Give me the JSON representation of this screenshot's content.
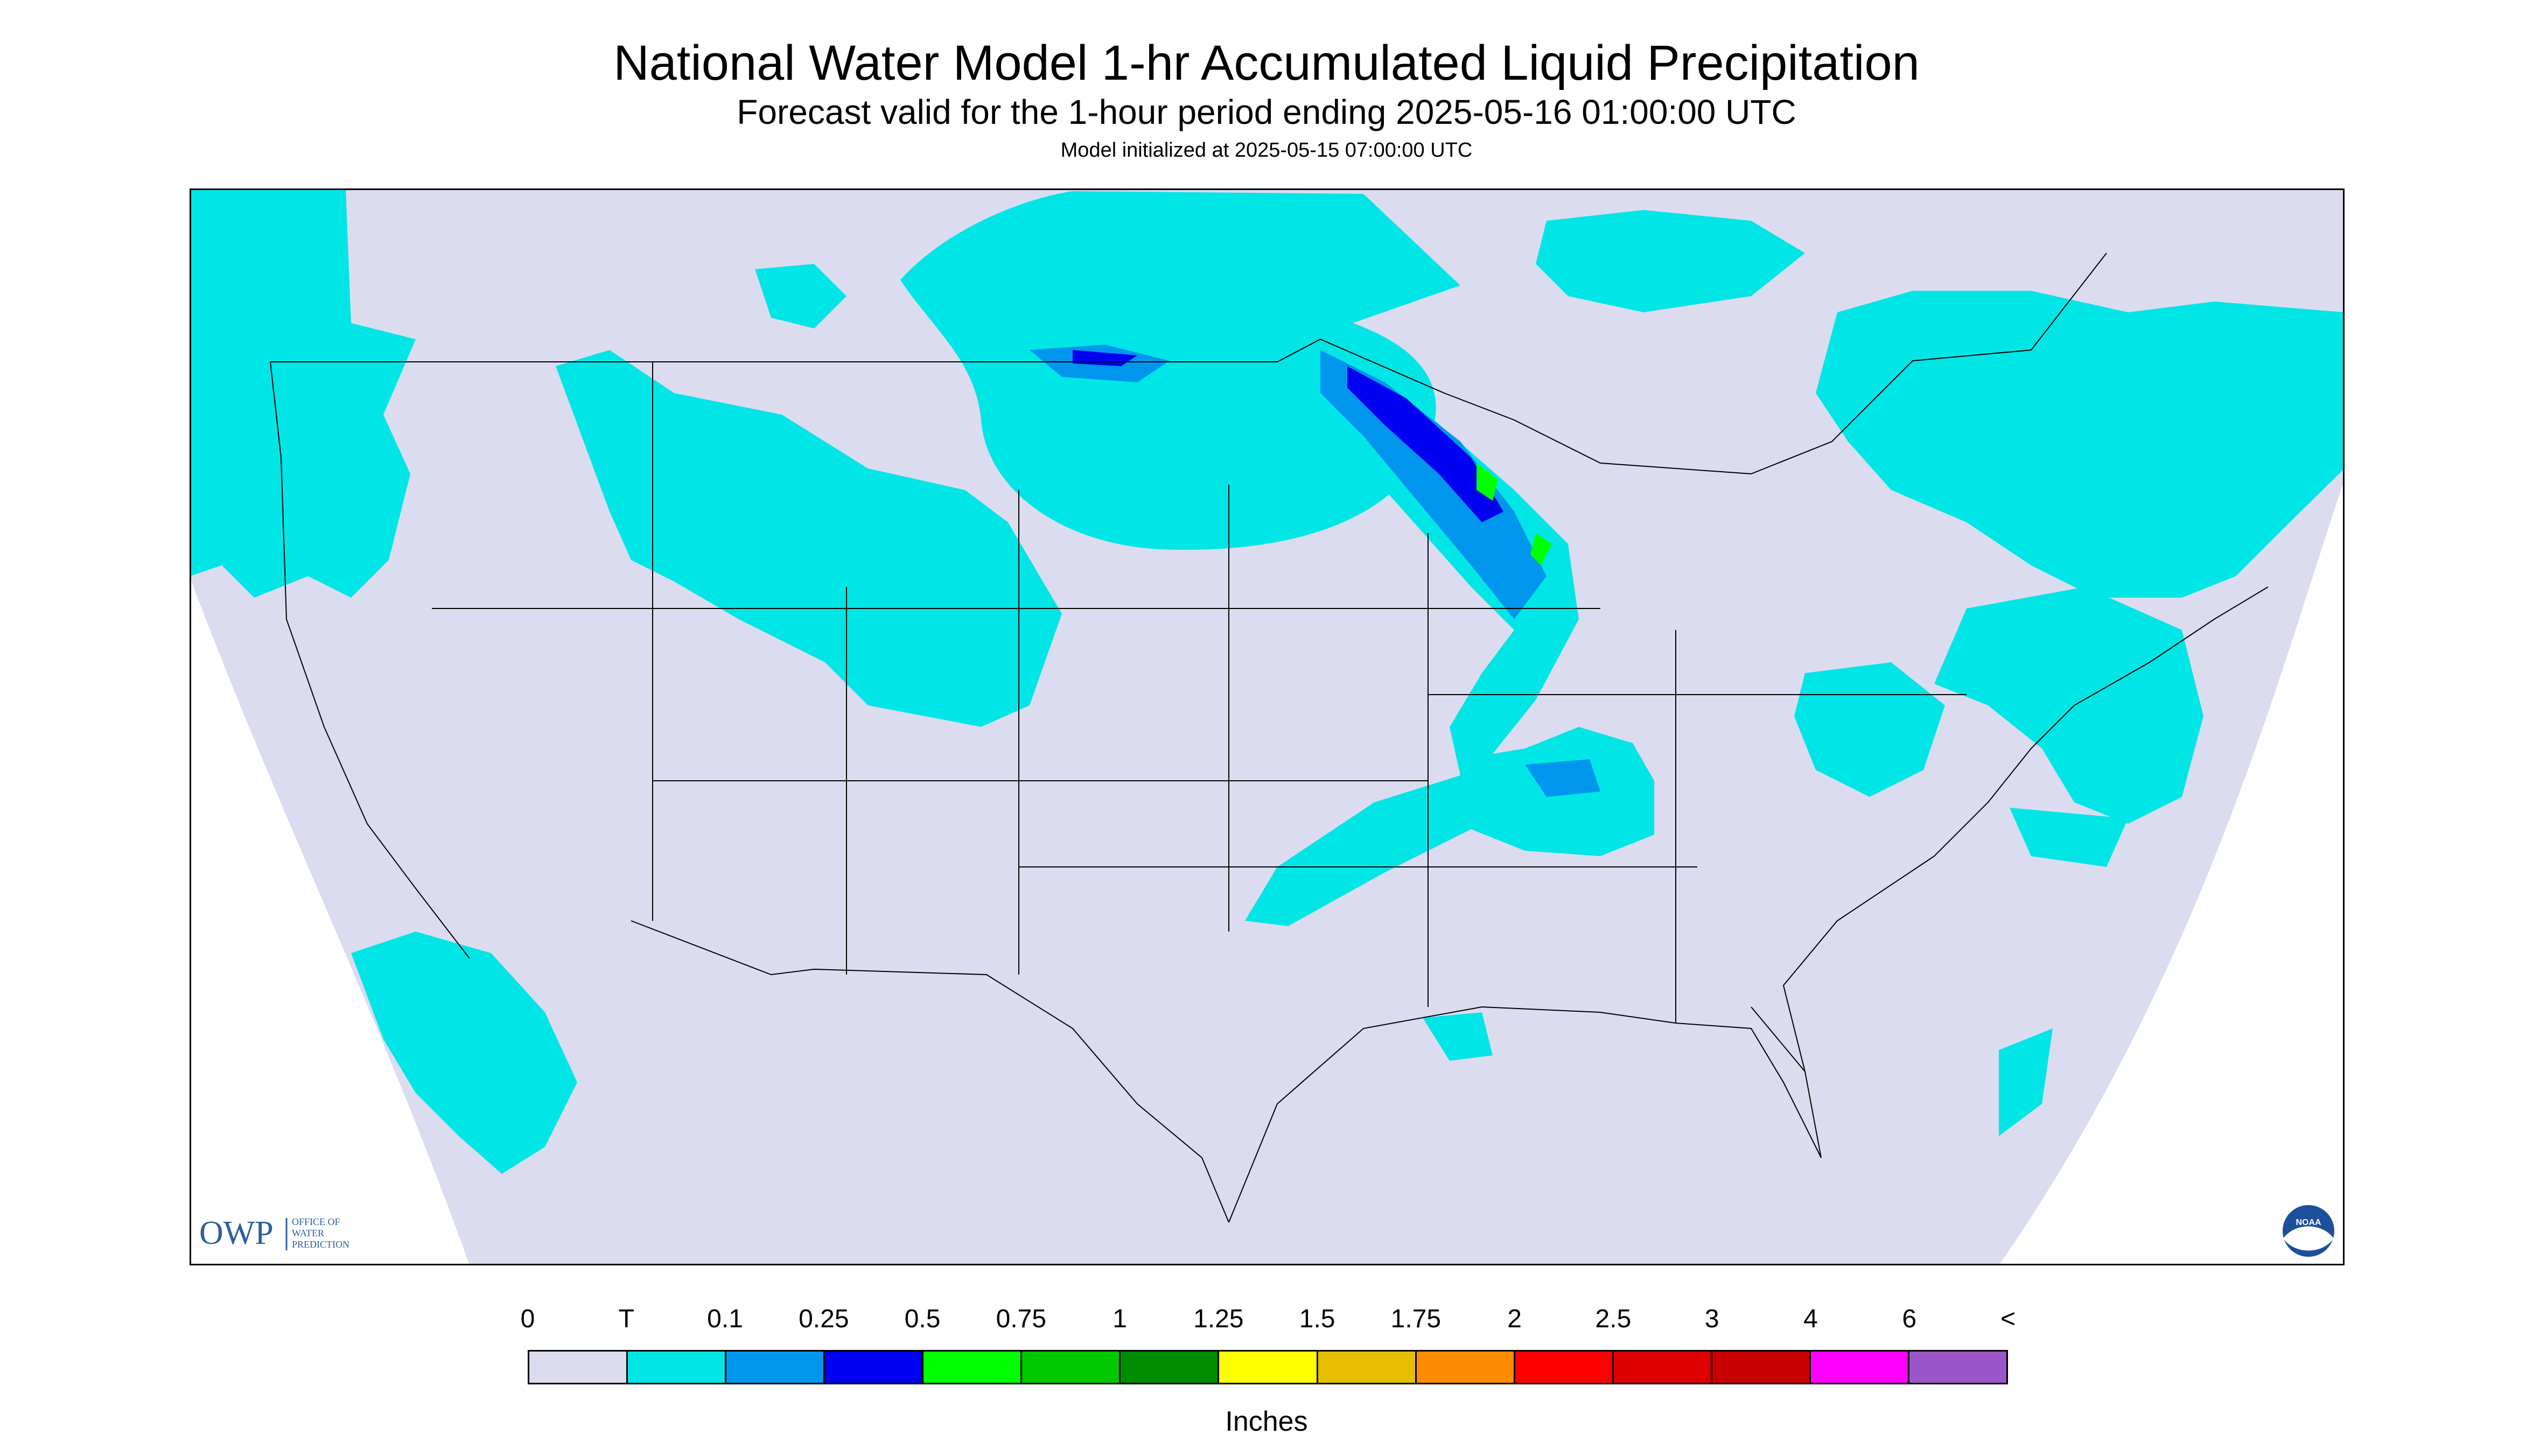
{
  "header": {
    "title": "National Water Model 1-hr Accumulated Liquid Precipitation",
    "subtitle": "Forecast valid for the 1-hour period ending 2025-05-16 01:00:00 UTC",
    "init_line": "Model initialized at 2025-05-15 07:00:00 UTC"
  },
  "logos": {
    "owp_text": "OWP",
    "owp_line1": "OFFICE OF",
    "owp_line2": "WATER",
    "owp_line3": "PREDICTION",
    "noaa_text": "NOAA"
  },
  "legend": {
    "labels": [
      "0",
      "T",
      "0.1",
      "0.25",
      "0.5",
      "0.75",
      "1",
      "1.25",
      "1.5",
      "1.75",
      "2",
      "2.5",
      "3",
      "4",
      "6",
      "<"
    ],
    "colors": [
      "#dcdcf0",
      "#00e6e6",
      "#0096ee",
      "#0000f0",
      "#00ff00",
      "#00c800",
      "#008c00",
      "#ffff00",
      "#e6be00",
      "#ff8c00",
      "#ff0000",
      "#dc0000",
      "#c80000",
      "#ff00ff",
      "#9a55c8"
    ],
    "units": "Inches"
  },
  "colors": {
    "map_background": "#dcdcf0",
    "trace": "#00e6e6",
    "light_blue": "#0096ee",
    "blue": "#0000f0",
    "green": "#00ff00",
    "border_lines": "#000000"
  }
}
